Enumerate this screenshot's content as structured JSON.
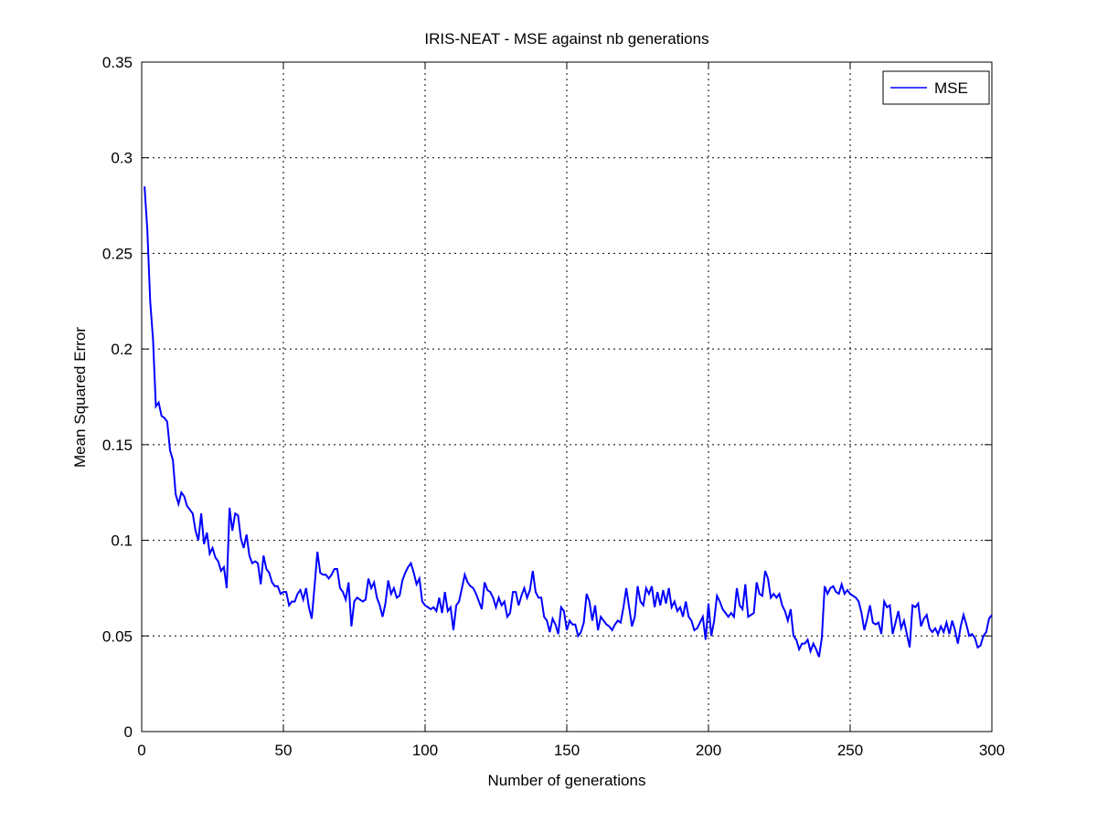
{
  "chart_data": {
    "type": "line",
    "title": "IRIS-NEAT - MSE against nb generations",
    "xlabel": "Number of generations",
    "ylabel": "Mean Squared Error",
    "xlim": [
      0,
      300
    ],
    "xticks": [
      0,
      50,
      100,
      150,
      200,
      250,
      300
    ],
    "ylim": [
      0,
      0.35
    ],
    "yticks": [
      0,
      0.05,
      0.1,
      0.15,
      0.2,
      0.25,
      0.3,
      0.35
    ],
    "grid": true,
    "legend": "northeast",
    "x": [
      1,
      2,
      3,
      4,
      5,
      6,
      7,
      8,
      9,
      10,
      11,
      12,
      13,
      14,
      15,
      16,
      17,
      18,
      19,
      20,
      21,
      22,
      23,
      24,
      25,
      26,
      27,
      28,
      29,
      30,
      31,
      32,
      33,
      34,
      35,
      36,
      37,
      38,
      39,
      40,
      41,
      42,
      43,
      44,
      45,
      46,
      47,
      48,
      49,
      50,
      51,
      52,
      53,
      54,
      55,
      56,
      57,
      58,
      59,
      60,
      61,
      62,
      63,
      64,
      65,
      66,
      67,
      68,
      69,
      70,
      71,
      72,
      73,
      74,
      75,
      76,
      77,
      78,
      79,
      80,
      81,
      82,
      83,
      84,
      85,
      86,
      87,
      88,
      89,
      90,
      91,
      92,
      93,
      94,
      95,
      96,
      97,
      98,
      99,
      100,
      101,
      102,
      103,
      104,
      105,
      106,
      107,
      108,
      109,
      110,
      111,
      112,
      113,
      114,
      115,
      116,
      117,
      118,
      119,
      120,
      121,
      122,
      123,
      124,
      125,
      126,
      127,
      128,
      129,
      130,
      131,
      132,
      133,
      134,
      135,
      136,
      137,
      138,
      139,
      140,
      141,
      142,
      143,
      144,
      145,
      146,
      147,
      148,
      149,
      150,
      151,
      152,
      153,
      154,
      155,
      156,
      157,
      158,
      159,
      160,
      161,
      162,
      163,
      164,
      165,
      166,
      167,
      168,
      169,
      170,
      171,
      172,
      173,
      174,
      175,
      176,
      177,
      178,
      179,
      180,
      181,
      182,
      183,
      184,
      185,
      186,
      187,
      188,
      189,
      190,
      191,
      192,
      193,
      194,
      195,
      196,
      197,
      198,
      199,
      200,
      201,
      202,
      203,
      204,
      205,
      206,
      207,
      208,
      209,
      210,
      211,
      212,
      213,
      214,
      215,
      216,
      217,
      218,
      219,
      220,
      221,
      222,
      223,
      224,
      225,
      226,
      227,
      228,
      229,
      230,
      231,
      232,
      233,
      234,
      235,
      236,
      237,
      238,
      239,
      240,
      241,
      242,
      243,
      244,
      245,
      246,
      247,
      248,
      249,
      250,
      251,
      252,
      253,
      254,
      255,
      256,
      257,
      258,
      259,
      260,
      261,
      262,
      263,
      264,
      265,
      266,
      267,
      268,
      269,
      270,
      271,
      272,
      273,
      274,
      275,
      276,
      277,
      278,
      279,
      280,
      281,
      282,
      283,
      284,
      285,
      286,
      287,
      288,
      289,
      290,
      291,
      292,
      293,
      294,
      295,
      296,
      297,
      298,
      299,
      300
    ],
    "series": [
      {
        "name": "MSE",
        "color": "#0000ff",
        "values": [
          0.285,
          0.262,
          0.225,
          0.205,
          0.17,
          0.172,
          0.165,
          0.164,
          0.162,
          0.147,
          0.142,
          0.124,
          0.119,
          0.125,
          0.123,
          0.118,
          0.116,
          0.114,
          0.105,
          0.1,
          0.114,
          0.098,
          0.104,
          0.093,
          0.096,
          0.091,
          0.089,
          0.084,
          0.086,
          0.075,
          0.117,
          0.105,
          0.114,
          0.113,
          0.101,
          0.096,
          0.103,
          0.092,
          0.088,
          0.089,
          0.088,
          0.077,
          0.092,
          0.085,
          0.083,
          0.078,
          0.076,
          0.076,
          0.072,
          0.073,
          0.073,
          0.066,
          0.068,
          0.068,
          0.072,
          0.074,
          0.069,
          0.075,
          0.065,
          0.059,
          0.076,
          0.094,
          0.083,
          0.082,
          0.082,
          0.08,
          0.082,
          0.085,
          0.085,
          0.075,
          0.073,
          0.069,
          0.078,
          0.055,
          0.068,
          0.07,
          0.069,
          0.068,
          0.069,
          0.08,
          0.075,
          0.078,
          0.07,
          0.066,
          0.06,
          0.067,
          0.079,
          0.072,
          0.075,
          0.07,
          0.071,
          0.079,
          0.083,
          0.086,
          0.088,
          0.083,
          0.077,
          0.08,
          0.068,
          0.066,
          0.065,
          0.064,
          0.065,
          0.063,
          0.07,
          0.062,
          0.073,
          0.063,
          0.065,
          0.053,
          0.066,
          0.068,
          0.075,
          0.082,
          0.078,
          0.076,
          0.075,
          0.072,
          0.068,
          0.064,
          0.078,
          0.074,
          0.073,
          0.07,
          0.065,
          0.07,
          0.066,
          0.068,
          0.06,
          0.062,
          0.073,
          0.073,
          0.066,
          0.071,
          0.075,
          0.07,
          0.074,
          0.084,
          0.073,
          0.07,
          0.07,
          0.06,
          0.058,
          0.052,
          0.059,
          0.056,
          0.051,
          0.065,
          0.063,
          0.053,
          0.058,
          0.056,
          0.056,
          0.05,
          0.052,
          0.057,
          0.072,
          0.068,
          0.058,
          0.066,
          0.053,
          0.06,
          0.058,
          0.056,
          0.055,
          0.053,
          0.056,
          0.058,
          0.057,
          0.065,
          0.075,
          0.065,
          0.055,
          0.06,
          0.076,
          0.068,
          0.066,
          0.075,
          0.072,
          0.076,
          0.065,
          0.073,
          0.066,
          0.074,
          0.067,
          0.075,
          0.065,
          0.068,
          0.063,
          0.065,
          0.06,
          0.068,
          0.06,
          0.058,
          0.053,
          0.054,
          0.057,
          0.06,
          0.048,
          0.067,
          0.05,
          0.058,
          0.071,
          0.068,
          0.064,
          0.062,
          0.06,
          0.062,
          0.06,
          0.075,
          0.066,
          0.064,
          0.077,
          0.06,
          0.061,
          0.062,
          0.078,
          0.072,
          0.071,
          0.084,
          0.08,
          0.07,
          0.072,
          0.07,
          0.072,
          0.066,
          0.063,
          0.058,
          0.064,
          0.05,
          0.048,
          0.043,
          0.046,
          0.046,
          0.048,
          0.042,
          0.046,
          0.043,
          0.039,
          0.049,
          0.076,
          0.072,
          0.075,
          0.076,
          0.073,
          0.072,
          0.077,
          0.072,
          0.074,
          0.072,
          0.071,
          0.07,
          0.068,
          0.062,
          0.053,
          0.059,
          0.066,
          0.057,
          0.056,
          0.057,
          0.051,
          0.068,
          0.065,
          0.066,
          0.051,
          0.057,
          0.063,
          0.054,
          0.058,
          0.051,
          0.044,
          0.066,
          0.065,
          0.067,
          0.055,
          0.059,
          0.061,
          0.054,
          0.052,
          0.054,
          0.051,
          0.055,
          0.052,
          0.057,
          0.051,
          0.058,
          0.053,
          0.046,
          0.055,
          0.061,
          0.056,
          0.05,
          0.051,
          0.049,
          0.044,
          0.045,
          0.05,
          0.052,
          0.059,
          0.061
        ]
      }
    ]
  }
}
